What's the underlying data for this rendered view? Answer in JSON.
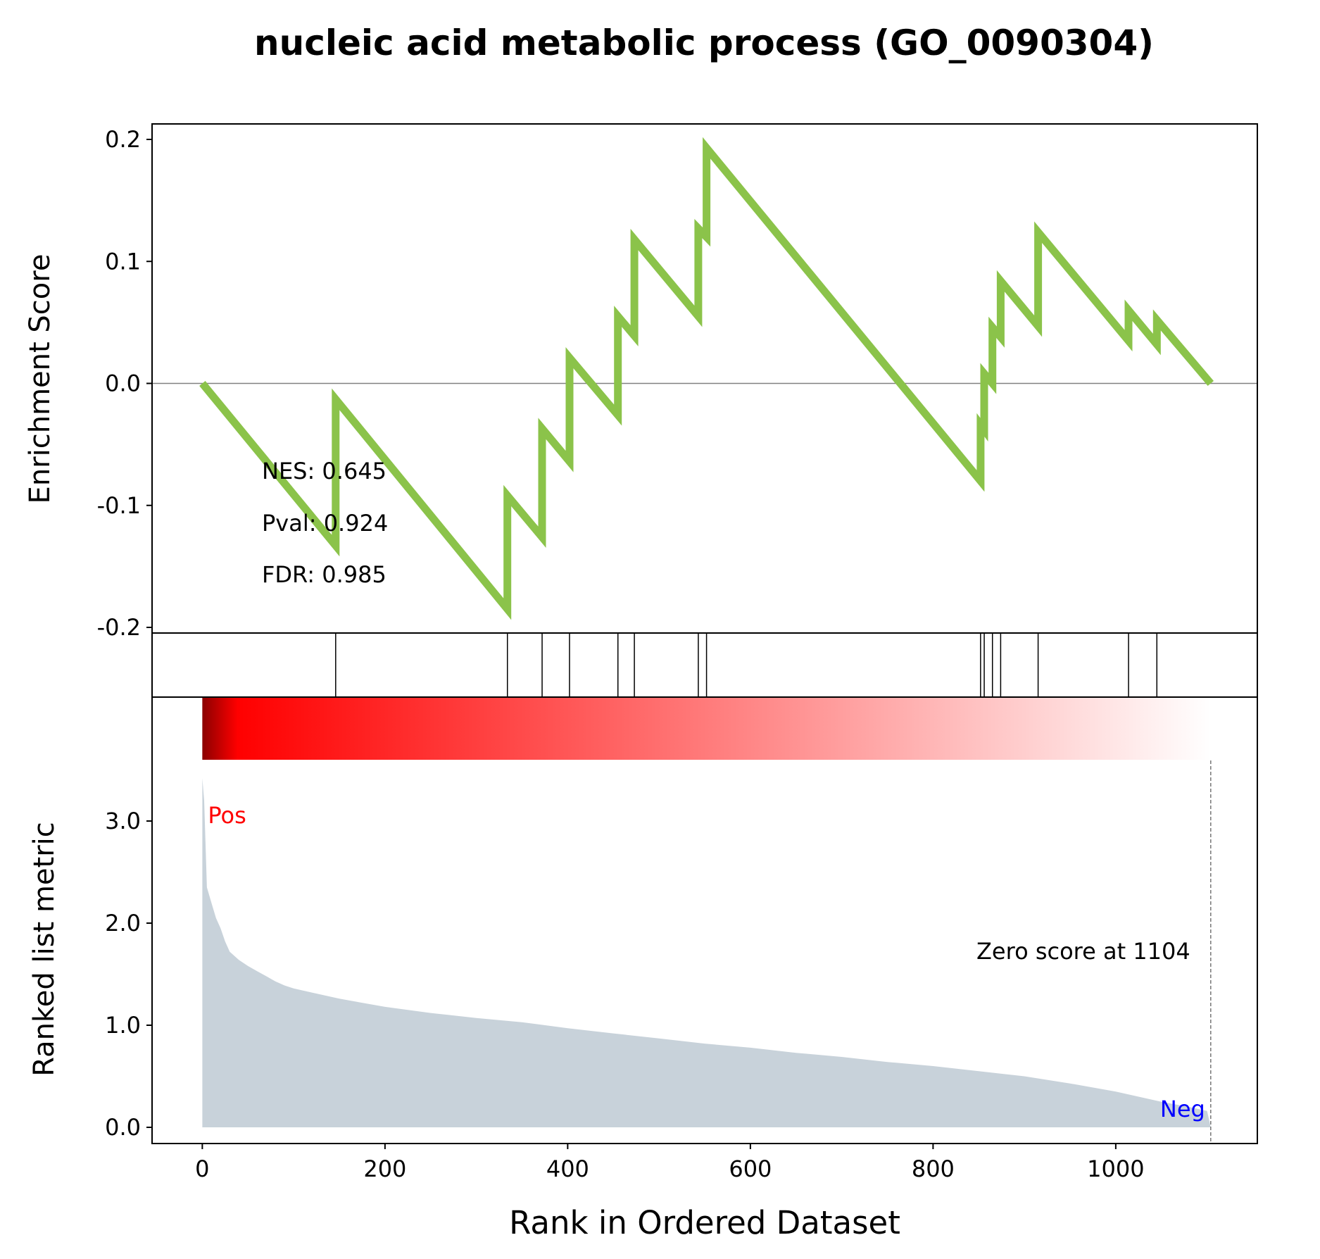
{
  "chart_data": {
    "type": "line",
    "title": "nucleic acid metabolic process (GO_0090304)",
    "enrichment": {
      "ylabel": "Enrichment Score",
      "ylim": [
        -0.2,
        0.2
      ],
      "yticks": [
        0.2,
        0.1,
        0.0,
        -0.1,
        -0.2
      ],
      "ytick_labels": [
        "0.2",
        "0.1",
        "0.0",
        "-0.1",
        "-0.2"
      ],
      "line_color": "#8bc34a",
      "zero_line": true,
      "stats": [
        "NES: 0.645",
        "Pval: 0.924",
        "FDR: 0.985"
      ],
      "points": [
        {
          "x": 0,
          "y": 0.0
        },
        {
          "x": 146,
          "y": -0.133
        },
        {
          "x": 146,
          "y": -0.013
        },
        {
          "x": 334,
          "y": -0.185
        },
        {
          "x": 334,
          "y": -0.092
        },
        {
          "x": 372,
          "y": -0.126
        },
        {
          "x": 372,
          "y": -0.037
        },
        {
          "x": 402,
          "y": -0.064
        },
        {
          "x": 402,
          "y": 0.021
        },
        {
          "x": 455,
          "y": -0.026
        },
        {
          "x": 455,
          "y": 0.055
        },
        {
          "x": 473,
          "y": 0.039
        },
        {
          "x": 473,
          "y": 0.118
        },
        {
          "x": 543,
          "y": 0.055
        },
        {
          "x": 543,
          "y": 0.127
        },
        {
          "x": 552,
          "y": 0.12
        },
        {
          "x": 552,
          "y": 0.193
        },
        {
          "x": 852,
          "y": -0.08
        },
        {
          "x": 852,
          "y": -0.034
        },
        {
          "x": 856,
          "y": -0.038
        },
        {
          "x": 856,
          "y": 0.008
        },
        {
          "x": 865,
          "y": 0.0
        },
        {
          "x": 865,
          "y": 0.046
        },
        {
          "x": 874,
          "y": 0.038
        },
        {
          "x": 874,
          "y": 0.084
        },
        {
          "x": 915,
          "y": 0.047
        },
        {
          "x": 915,
          "y": 0.124
        },
        {
          "x": 1014,
          "y": 0.035
        },
        {
          "x": 1014,
          "y": 0.06
        },
        {
          "x": 1045,
          "y": 0.032
        },
        {
          "x": 1045,
          "y": 0.052
        },
        {
          "x": 1104,
          "y": 0.0
        }
      ]
    },
    "hits": [
      146,
      334,
      372,
      402,
      455,
      473,
      543,
      552,
      852,
      856,
      865,
      874,
      915,
      1014,
      1045
    ],
    "ranked_metric": {
      "ylabel": "Ranked list metric",
      "ylim": [
        -0.2,
        3.6
      ],
      "yticks": [
        0.0,
        1.0,
        2.0,
        3.0
      ],
      "ytick_labels": [
        "0.0",
        "1.0",
        "2.0",
        "3.0"
      ],
      "fill_color": "#c8d2da",
      "heat_colors": [
        "#8b0000",
        "#ff0000",
        "#ffffff"
      ],
      "pos_label": "Pos",
      "neg_label": "Neg",
      "pos_color": "#ff0000",
      "neg_color": "#0000ff",
      "zero_score_label": "Zero score at 1104",
      "zero_score_rank": 1104,
      "profile": [
        {
          "x": 0,
          "y": 3.42
        },
        {
          "x": 2,
          "y": 3.2
        },
        {
          "x": 5,
          "y": 2.35
        },
        {
          "x": 10,
          "y": 2.2
        },
        {
          "x": 15,
          "y": 2.05
        },
        {
          "x": 20,
          "y": 1.95
        },
        {
          "x": 25,
          "y": 1.82
        },
        {
          "x": 30,
          "y": 1.72
        },
        {
          "x": 40,
          "y": 1.64
        },
        {
          "x": 50,
          "y": 1.58
        },
        {
          "x": 60,
          "y": 1.53
        },
        {
          "x": 70,
          "y": 1.48
        },
        {
          "x": 80,
          "y": 1.43
        },
        {
          "x": 90,
          "y": 1.39
        },
        {
          "x": 100,
          "y": 1.36
        },
        {
          "x": 120,
          "y": 1.32
        },
        {
          "x": 150,
          "y": 1.26
        },
        {
          "x": 200,
          "y": 1.18
        },
        {
          "x": 250,
          "y": 1.12
        },
        {
          "x": 300,
          "y": 1.07
        },
        {
          "x": 350,
          "y": 1.03
        },
        {
          "x": 400,
          "y": 0.97
        },
        {
          "x": 450,
          "y": 0.92
        },
        {
          "x": 500,
          "y": 0.87
        },
        {
          "x": 550,
          "y": 0.82
        },
        {
          "x": 600,
          "y": 0.78
        },
        {
          "x": 650,
          "y": 0.73
        },
        {
          "x": 700,
          "y": 0.69
        },
        {
          "x": 750,
          "y": 0.64
        },
        {
          "x": 800,
          "y": 0.6
        },
        {
          "x": 850,
          "y": 0.55
        },
        {
          "x": 900,
          "y": 0.5
        },
        {
          "x": 950,
          "y": 0.43
        },
        {
          "x": 1000,
          "y": 0.35
        },
        {
          "x": 1050,
          "y": 0.25
        },
        {
          "x": 1080,
          "y": 0.2
        },
        {
          "x": 1100,
          "y": 0.16
        },
        {
          "x": 1104,
          "y": 0.0
        }
      ]
    },
    "x_axis": {
      "label": "Rank in Ordered Dataset",
      "xlim": [
        -55,
        1155
      ],
      "ticks": [
        0,
        200,
        400,
        600,
        800,
        1000
      ],
      "tick_labels": [
        "0",
        "200",
        "400",
        "600",
        "800",
        "1000"
      ]
    }
  }
}
